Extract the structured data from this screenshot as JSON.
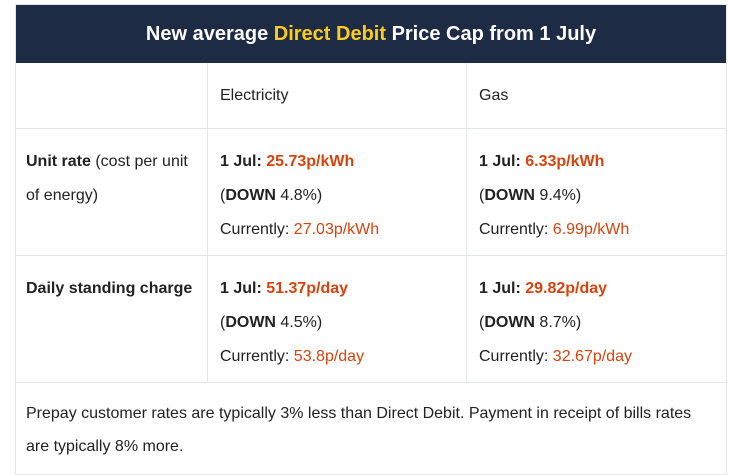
{
  "header": {
    "title_pre": "New average ",
    "title_highlight": "Direct Debit",
    "title_post": " Price Cap from 1 July",
    "highlight_color": "#ffcc1e",
    "background": "#1d2b45"
  },
  "columns": [
    "Electricity",
    "Gas"
  ],
  "rows": [
    {
      "label_bold": "Unit rate",
      "label_rest": " (cost per unit of energy)",
      "cells": [
        {
          "prefix": "1 Jul: ",
          "new_value": "25.73p/kWh",
          "change_word": "DOWN",
          "change_value": " 4.8%",
          "current_label": "Currently: ",
          "current_value": "27.03p/kWh"
        },
        {
          "prefix": "1 Jul: ",
          "new_value": "6.33p/kWh",
          "change_word": "DOWN",
          "change_value": " 9.4%",
          "current_label": "Currently: ",
          "current_value": "6.99p/kWh"
        }
      ]
    },
    {
      "label_bold": "Daily standing charge",
      "label_rest": "",
      "cells": [
        {
          "prefix": "1 Jul: ",
          "new_value": "51.37p/day",
          "change_word": "DOWN",
          "change_value": " 4.5%",
          "current_label": "Currently: ",
          "current_value": "53.8p/day"
        },
        {
          "prefix": "1 Jul: ",
          "new_value": "29.82p/day",
          "change_word": "DOWN",
          "change_value": " 8.7%",
          "current_label": "Currently: ",
          "current_value": "32.67p/day"
        }
      ]
    }
  ],
  "footnote": "Prepay customer rates are typically 3% less than Direct Debit. Payment in receipt of bills rates are typically 8% more.",
  "accent_color": "#d8430d"
}
